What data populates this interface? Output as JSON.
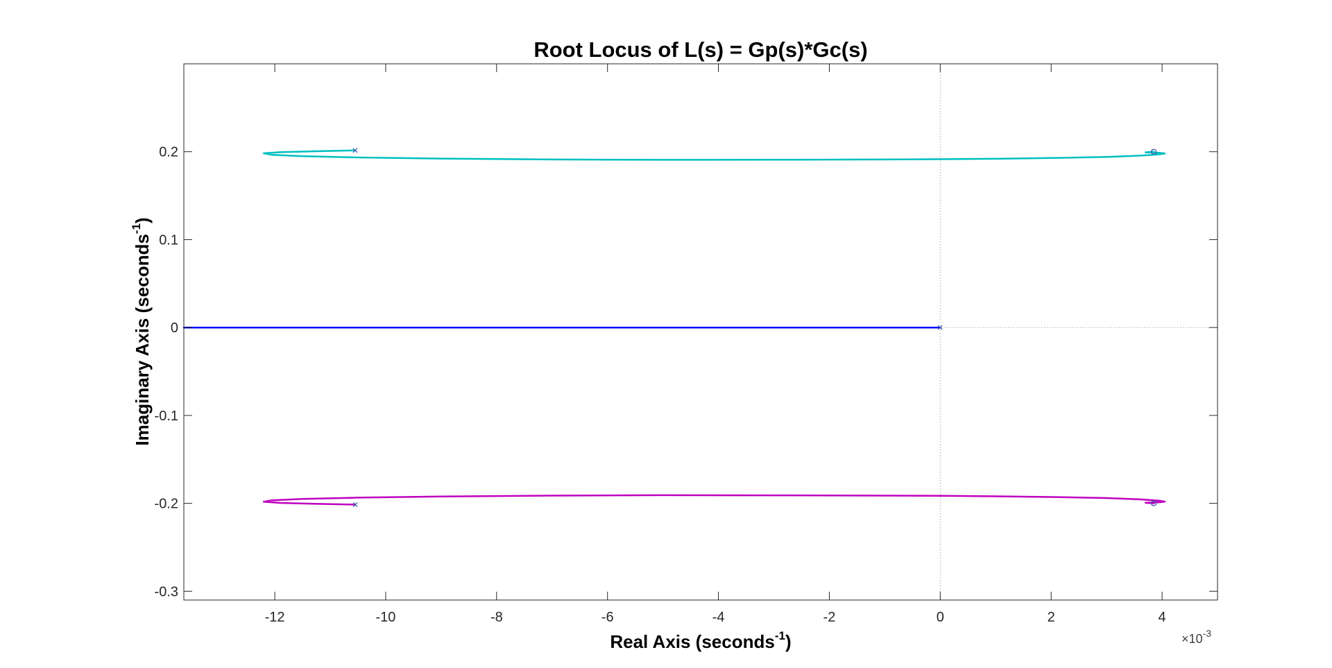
{
  "chart_data": {
    "type": "line",
    "title": "Root Locus of L(s) = Gp(s)*Gc(s)",
    "xlabel": {
      "prefix": "Real Axis (seconds",
      "sup": "-1",
      "suffix": ")"
    },
    "ylabel": {
      "prefix": "Imaginary Axis (seconds",
      "sup": "-1",
      "suffix": ")"
    },
    "x_exponent": {
      "prefix": "×10",
      "sup": "-3"
    },
    "x_scale": 0.001,
    "xlim": [
      -13.64,
      5.0
    ],
    "ylim": [
      -0.31,
      0.3
    ],
    "xticks": [
      -12,
      -10,
      -8,
      -6,
      -4,
      -2,
      0,
      2,
      4
    ],
    "xtick_labels": [
      "-12",
      "-10",
      "-8",
      "-6",
      "-4",
      "-2",
      "0",
      "2",
      "4"
    ],
    "yticks": [
      -0.3,
      -0.2,
      -0.1,
      0,
      0.1,
      0.2
    ],
    "ytick_labels": [
      "-0.3",
      "-0.2",
      "-0.1",
      "0",
      "0.1",
      "0.2"
    ],
    "grid": false,
    "colors": {
      "axes": "#262626",
      "reference_lines": "#a8a8a8",
      "marker": "#3d5aad"
    },
    "series": [
      {
        "color": "#00bfbf",
        "points": [
          [
            -10.55,
            0.2015
          ],
          [
            -11.3,
            0.2005
          ],
          [
            -11.9,
            0.1995
          ],
          [
            -12.2,
            0.1982
          ],
          [
            -12.05,
            0.1965
          ],
          [
            -11.5,
            0.195
          ],
          [
            -10.5,
            0.1935
          ],
          [
            -9,
            0.1922
          ],
          [
            -7,
            0.1912
          ],
          [
            -5,
            0.1908
          ],
          [
            -3,
            0.1909
          ],
          [
            -1,
            0.1912
          ],
          [
            0,
            0.1915
          ],
          [
            1,
            0.192
          ],
          [
            2,
            0.1928
          ],
          [
            3,
            0.194
          ],
          [
            3.6,
            0.1955
          ],
          [
            3.95,
            0.197
          ],
          [
            4.05,
            0.198
          ],
          [
            3.95,
            0.1988
          ],
          [
            3.7,
            0.1993
          ],
          [
            3.85,
            0.2
          ]
        ]
      },
      {
        "color": "#bf00bf",
        "points": [
          [
            -10.55,
            -0.2015
          ],
          [
            -11.3,
            -0.2005
          ],
          [
            -11.9,
            -0.1995
          ],
          [
            -12.2,
            -0.1982
          ],
          [
            -12.05,
            -0.1965
          ],
          [
            -11.5,
            -0.195
          ],
          [
            -10.5,
            -0.1935
          ],
          [
            -9,
            -0.1922
          ],
          [
            -7,
            -0.1912
          ],
          [
            -5,
            -0.1908
          ],
          [
            -3,
            -0.1909
          ],
          [
            -1,
            -0.1912
          ],
          [
            0,
            -0.1915
          ],
          [
            1,
            -0.192
          ],
          [
            2,
            -0.1928
          ],
          [
            3,
            -0.194
          ],
          [
            3.6,
            -0.1955
          ],
          [
            3.95,
            -0.197
          ],
          [
            4.05,
            -0.198
          ],
          [
            3.95,
            -0.1988
          ],
          [
            3.7,
            -0.1993
          ],
          [
            3.85,
            -0.2
          ]
        ]
      },
      {
        "color": "#0000ff",
        "points": [
          [
            0,
            0
          ],
          [
            -13.64,
            0
          ]
        ]
      }
    ],
    "poles": [
      [
        -10.55,
        0.2015
      ],
      [
        -10.55,
        -0.2015
      ],
      [
        0,
        0
      ]
    ],
    "zeros": [
      [
        3.85,
        0.2
      ],
      [
        3.85,
        -0.2
      ]
    ]
  }
}
